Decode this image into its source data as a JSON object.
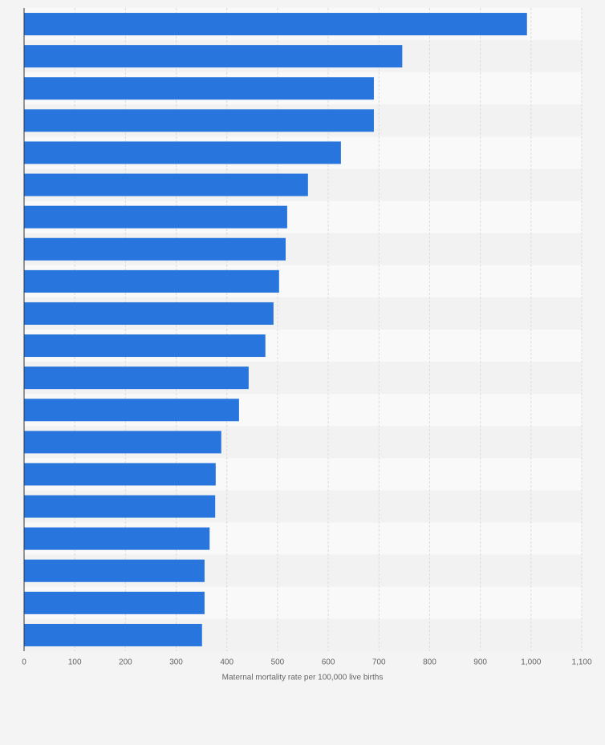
{
  "chart_data": {
    "type": "bar",
    "orientation": "horizontal",
    "x_label": "Maternal mortality rate per 100,000 live births",
    "categories": [
      null,
      null,
      null,
      null,
      null,
      null,
      null,
      null,
      null,
      null,
      null,
      null,
      null,
      null,
      null,
      null,
      null,
      null,
      null,
      null
    ],
    "values": [
      992,
      746,
      690,
      690,
      625,
      560,
      519,
      516,
      503,
      492,
      476,
      443,
      424,
      389,
      378,
      377,
      366,
      356,
      356,
      351
    ],
    "color": "#2876dd",
    "xlim": [
      0,
      1100
    ],
    "xticks": [
      0,
      100,
      200,
      300,
      400,
      500,
      600,
      700,
      800,
      900,
      {
        "value": 1000,
        "label": "1,000"
      },
      {
        "value": 1100,
        "label": "1,100"
      }
    ],
    "grid": true
  }
}
